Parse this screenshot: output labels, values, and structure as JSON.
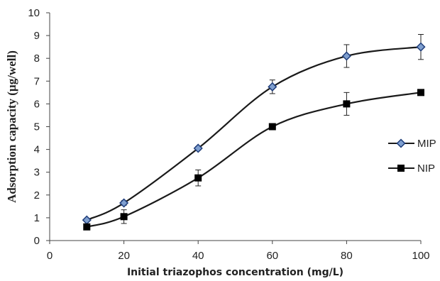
{
  "chart_data": {
    "type": "line",
    "xlabel": "Initial triazophos concentration (mg/L)",
    "ylabel": "Adsorption capacity (µg/well)",
    "xlim": [
      0,
      100
    ],
    "ylim": [
      0,
      10
    ],
    "xticks": [
      "0",
      "20",
      "40",
      "60",
      "80",
      "100"
    ],
    "yticks": [
      "0",
      "1",
      "2",
      "3",
      "4",
      "5",
      "6",
      "7",
      "8",
      "9",
      "10"
    ],
    "grid": false,
    "legend_position": "right",
    "series": [
      {
        "name": "MIP",
        "marker": "diamond",
        "color": "#1a1a1a",
        "marker_fill": "#7f9fcf",
        "x": [
          10,
          20,
          40,
          60,
          80,
          100
        ],
        "y": [
          0.9,
          1.65,
          4.05,
          6.75,
          8.1,
          8.5
        ],
        "error": [
          0.05,
          0.1,
          0.08,
          0.3,
          0.5,
          0.55
        ]
      },
      {
        "name": "NIP",
        "marker": "square",
        "color": "#1a1a1a",
        "marker_fill": "#000000",
        "x": [
          10,
          20,
          40,
          60,
          80,
          100
        ],
        "y": [
          0.6,
          1.05,
          2.75,
          5.0,
          6.0,
          6.5
        ],
        "error": [
          0.05,
          0.3,
          0.35,
          0.05,
          0.5,
          0.05
        ]
      }
    ]
  }
}
